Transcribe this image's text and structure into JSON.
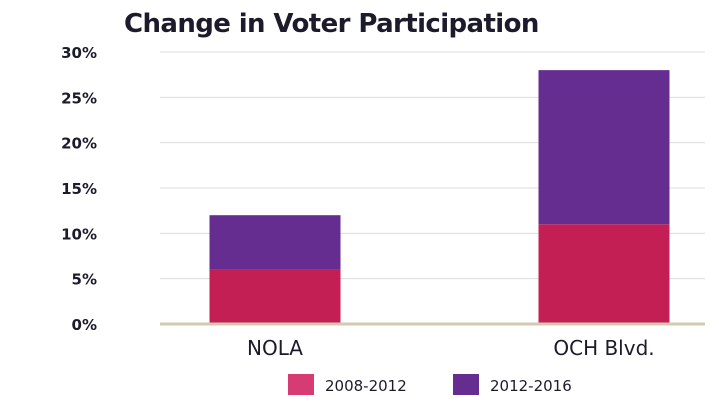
{
  "chart_data": {
    "type": "bar",
    "stacked": true,
    "title": "Change in Voter Participation",
    "xlabel": "",
    "ylabel": "",
    "ylim": [
      0,
      30
    ],
    "y_ticks": [
      0,
      5,
      10,
      15,
      20,
      25,
      30
    ],
    "y_tick_labels": [
      "0%",
      "5%",
      "10%",
      "15%",
      "20%",
      "25%",
      "30%"
    ],
    "categories": [
      "NOLA",
      "OCH Blvd."
    ],
    "series": [
      {
        "name": "2008-2012",
        "values": [
          6,
          11
        ],
        "color": "#c41f55",
        "legend_color": "#d63c72"
      },
      {
        "name": "2012-2016",
        "values": [
          6,
          17
        ],
        "color": "#662d91",
        "legend_color": "#662d91"
      }
    ],
    "grid": true,
    "legend_position": "bottom",
    "axis_color": "#d3c9b4",
    "grid_color": "#dcdcdc"
  }
}
